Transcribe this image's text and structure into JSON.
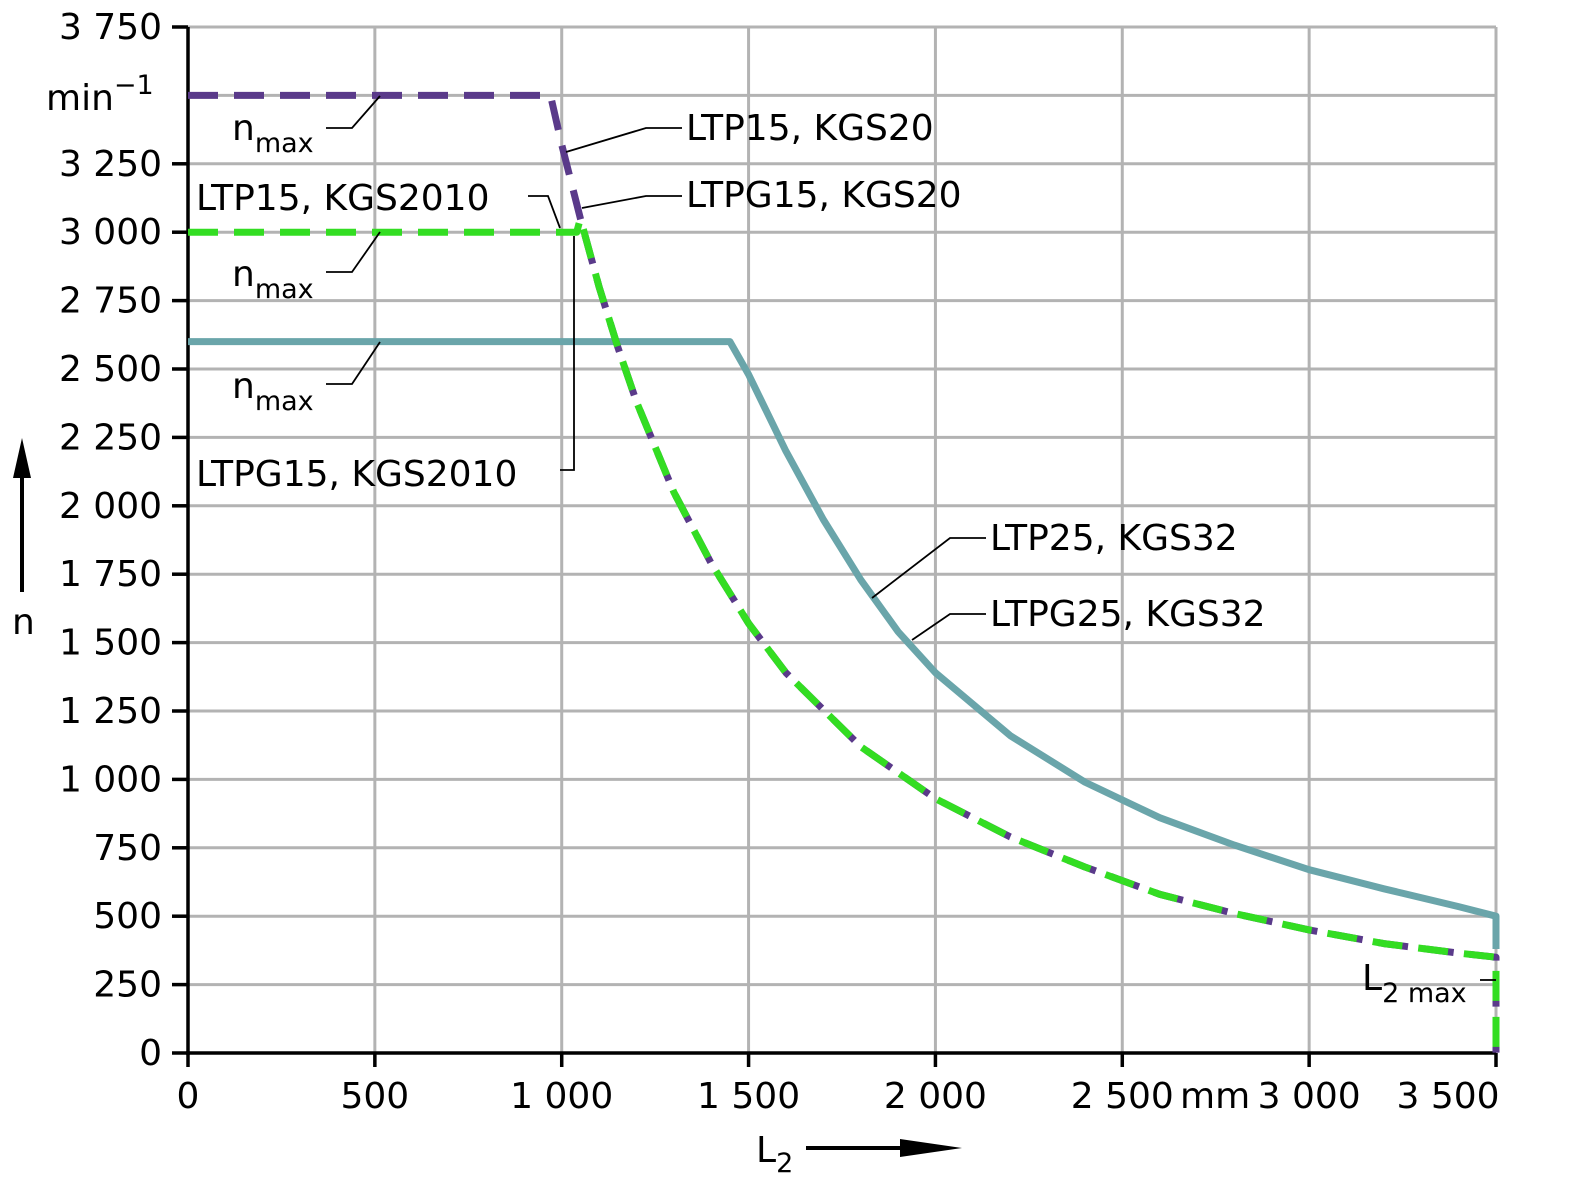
{
  "chart_data": {
    "type": "line",
    "xlabel": "L",
    "xlabel_sub": "2",
    "ylabel": "n",
    "xunit": "mm",
    "yunit": "min",
    "yunit_sup": "−1",
    "xlim": [
      0,
      3500
    ],
    "ylim": [
      0,
      3750
    ],
    "grid": true,
    "x_ticks": [
      0,
      500,
      1000,
      1500,
      2000,
      2500,
      3000,
      3500
    ],
    "x_tick_labels": [
      "0",
      "500",
      "1 000",
      "1 500",
      "2 000",
      "2 500",
      "3 000",
      "3 500"
    ],
    "y_ticks": [
      0,
      250,
      500,
      750,
      1000,
      1250,
      1500,
      1750,
      2000,
      2250,
      2500,
      2750,
      3000,
      3250,
      3750
    ],
    "y_tick_labels": [
      "0",
      "250",
      "500",
      "750",
      "1 000",
      "1 250",
      "1 500",
      "1 750",
      "2 000",
      "2 250",
      "2 500",
      "2 750",
      "3 000",
      "3 250",
      "3 750"
    ],
    "y_grid_values": [
      0,
      250,
      500,
      750,
      1000,
      1250,
      1500,
      1750,
      2000,
      2250,
      2500,
      2750,
      3000,
      3250,
      3500,
      3750
    ],
    "x_grid_values": [
      0,
      500,
      1000,
      1500,
      2000,
      2500,
      3000,
      3500
    ],
    "series": [
      {
        "labels": [
          "LTP25, KGS32",
          "LTPG25, KGS32"
        ],
        "color": "#6aa5aa",
        "style": "solid",
        "x": [
          0,
          1450,
          1500,
          1600,
          1700,
          1800,
          1900,
          2000,
          2200,
          2400,
          2600,
          2800,
          3000,
          3200,
          3400,
          3500,
          3500
        ],
        "y": [
          2600,
          2600,
          2480,
          2200,
          1950,
          1730,
          1540,
          1390,
          1160,
          990,
          860,
          760,
          670,
          600,
          535,
          500,
          380
        ]
      },
      {
        "labels": [
          "LTP15, KGS20",
          "LTPG15, KGS20"
        ],
        "color": "#5a3a8a",
        "style": "dashed",
        "x": [
          0,
          970,
          1000,
          1050,
          1100,
          1150,
          1200,
          1300,
          1400,
          1500,
          1600,
          1800,
          2000,
          2200,
          2400,
          2600,
          2800,
          3000,
          3200,
          3400,
          3500,
          3500
        ],
        "y": [
          3500,
          3500,
          3320,
          3050,
          2800,
          2580,
          2380,
          2050,
          1790,
          1570,
          1390,
          1120,
          930,
          790,
          680,
          580,
          510,
          450,
          400,
          365,
          350,
          0
        ]
      },
      {
        "labels": [
          "LTP15, KGS2010",
          "LTPG15, KGS2010"
        ],
        "color": "#33dd22",
        "style": "dashed",
        "x": [
          0,
          1040,
          1050,
          1100,
          1150,
          1200,
          1300,
          1400,
          1500,
          1600,
          1800,
          2000,
          2200,
          2400,
          2600,
          2800,
          3000,
          3200,
          3400,
          3500,
          3500
        ],
        "y": [
          3000,
          3000,
          3050,
          2800,
          2580,
          2380,
          2050,
          1790,
          1570,
          1390,
          1120,
          930,
          790,
          680,
          580,
          510,
          450,
          400,
          365,
          350,
          0
        ]
      }
    ],
    "annotations": {
      "nmax_main": "n",
      "nmax_sub": "max",
      "ltp15_kgs20": "LTP15, KGS20",
      "ltpg15_kgs20": "LTPG15, KGS20",
      "ltp15_kgs2010": "LTP15, KGS2010",
      "ltpg15_kgs2010": "LTPG15, KGS2010",
      "ltp25_kgs32": "LTP25, KGS32",
      "ltpg25_kgs32": "LTPG25, KGS32",
      "l2max_main": "L",
      "l2max_sub": "2 max"
    }
  }
}
